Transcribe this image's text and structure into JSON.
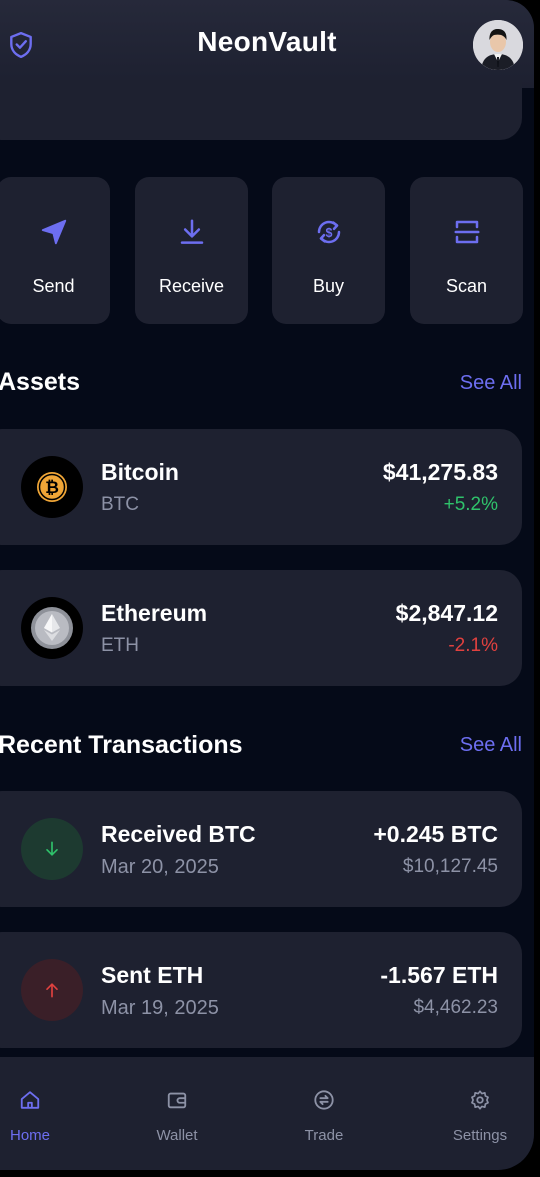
{
  "header": {
    "title": "NeonVault",
    "logo_icon": "shield-check-icon",
    "avatar_icon": "user-avatar"
  },
  "quick_actions": [
    {
      "label": "Send",
      "icon": "send-icon"
    },
    {
      "label": "Receive",
      "icon": "download-icon"
    },
    {
      "label": "Buy",
      "icon": "dollar-cycle-icon"
    },
    {
      "label": "Scan",
      "icon": "scan-icon"
    }
  ],
  "assets": {
    "title": "Assets",
    "see_all": "See All",
    "items": [
      {
        "name": "Bitcoin",
        "symbol": "BTC",
        "value": "$41,275.83",
        "change": "+5.2%",
        "icon": "bitcoin-icon"
      },
      {
        "name": "Ethereum",
        "symbol": "ETH",
        "value": "$2,847.12",
        "change": "-2.1%",
        "icon": "ethereum-icon"
      }
    ]
  },
  "transactions": {
    "title": "Recent Transactions",
    "see_all": "See All",
    "items": [
      {
        "title": "Received BTC",
        "date": "Mar 20, 2025",
        "amount": "+0.245 BTC",
        "usd": "$10,127.45",
        "icon": "arrow-down-icon"
      },
      {
        "title": "Sent ETH",
        "date": "Mar 19, 2025",
        "amount": "-1.567 ETH",
        "usd": "$4,462.23",
        "icon": "arrow-up-icon"
      }
    ]
  },
  "nav": {
    "active": "Home",
    "items": [
      {
        "label": "Home",
        "icon": "home-icon"
      },
      {
        "label": "Wallet",
        "icon": "wallet-icon"
      },
      {
        "label": "Trade",
        "icon": "exchange-icon"
      },
      {
        "label": "Settings",
        "icon": "gear-icon"
      }
    ]
  },
  "colors": {
    "accent": "#6d6ef0",
    "positive": "#2fc26b",
    "negative": "#e0413f",
    "background": "#050a18",
    "card": "#1e2130"
  }
}
